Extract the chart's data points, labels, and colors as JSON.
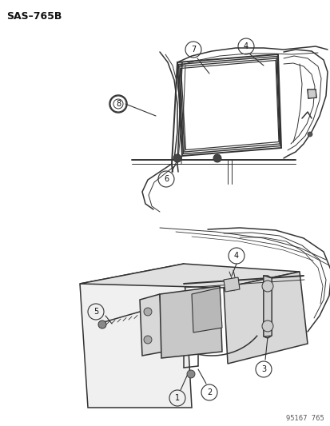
{
  "title_label": "SAS–765B",
  "watermark": "95167  765",
  "bg_color": "#ffffff",
  "font_color": "#111111",
  "line_color": "#333333",
  "lw_main": 1.1,
  "lw_thin": 0.7,
  "lw_thick": 1.4
}
